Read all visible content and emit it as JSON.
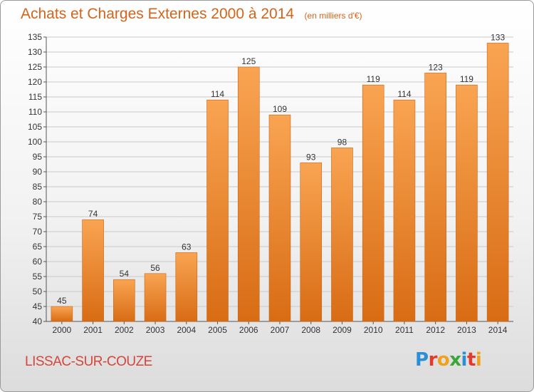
{
  "header": {
    "title": "Achats et Charges Externes 2000 à 2014",
    "unit": "(en milliers d'€)"
  },
  "footer": {
    "commune": "LISSAC-SUR-COUZE",
    "logo": {
      "text": "Proxiti",
      "letters": [
        "P",
        "r",
        "o",
        "x",
        "i",
        "t",
        "i"
      ],
      "colors": [
        "#2a8fd6",
        "#e33a2e",
        "#f0a21c",
        "#3aa63a",
        "#2a8fd6",
        "#e33a2e",
        "#f0a21c"
      ]
    }
  },
  "chart_data": {
    "type": "bar",
    "title": "Achats et Charges Externes 2000 à 2014",
    "subtitle": "(en milliers d'€)",
    "categories": [
      "2000",
      "2001",
      "2002",
      "2003",
      "2004",
      "2005",
      "2006",
      "2007",
      "2008",
      "2009",
      "2010",
      "2011",
      "2012",
      "2013",
      "2014"
    ],
    "values": [
      45,
      74,
      54,
      56,
      63,
      114,
      125,
      109,
      93,
      98,
      119,
      114,
      123,
      119,
      133
    ],
    "ylim": [
      40,
      135
    ],
    "yticks": [
      40,
      45,
      50,
      55,
      60,
      65,
      70,
      75,
      80,
      85,
      90,
      95,
      100,
      105,
      110,
      115,
      120,
      125,
      130,
      135
    ],
    "grid": true,
    "bar_color": "#f08a28",
    "legend": "none"
  }
}
